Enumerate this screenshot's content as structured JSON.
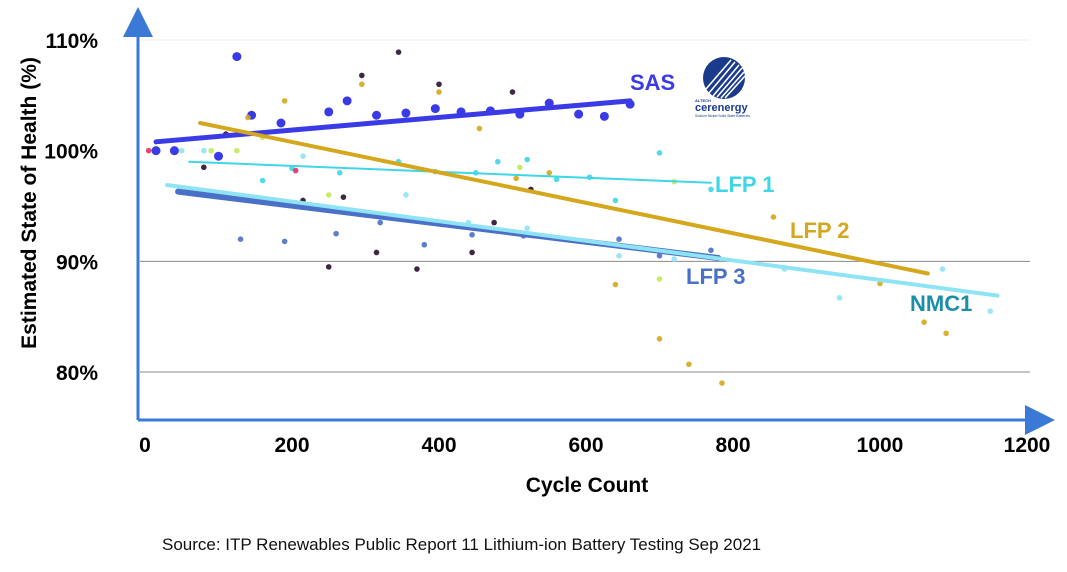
{
  "chart_data": {
    "type": "scatter",
    "title": "",
    "xlabel": "Cycle Count",
    "ylabel": "Estimated State of Health (%)",
    "xlim": [
      0,
      1200
    ],
    "ylim": [
      75,
      112
    ],
    "x_ticks": [
      0,
      200,
      400,
      600,
      800,
      1000,
      1200
    ],
    "y_ticks": [
      80,
      90,
      100,
      110
    ],
    "y_tick_labels": [
      "80%",
      "90%",
      "100%",
      "110%"
    ],
    "grid_lines_y": [
      80,
      90,
      110
    ],
    "series": [
      {
        "name": "SAS",
        "color": "#3a3ae6",
        "trend": [
          [
            15,
            100.8
          ],
          [
            660,
            104.5
          ]
        ],
        "points": [
          [
            15,
            100
          ],
          [
            40,
            100
          ],
          [
            100,
            99.5
          ],
          [
            125,
            108.5
          ],
          [
            145,
            103.2
          ],
          [
            185,
            102.5
          ],
          [
            250,
            103.5
          ],
          [
            275,
            104.5
          ],
          [
            315,
            103.2
          ],
          [
            355,
            103.4
          ],
          [
            395,
            103.8
          ],
          [
            430,
            103.5
          ],
          [
            470,
            103.6
          ],
          [
            510,
            103.3
          ],
          [
            550,
            104.3
          ],
          [
            590,
            103.3
          ],
          [
            625,
            103.1
          ],
          [
            660,
            104.2
          ]
        ]
      },
      {
        "name": "LFP 1",
        "color": "#3fd6e8",
        "trend": [
          [
            60,
            99.0
          ],
          [
            770,
            97.1
          ]
        ],
        "points": [
          [
            130,
            101.5
          ],
          [
            160,
            97.3
          ],
          [
            200,
            98.4
          ],
          [
            265,
            98
          ],
          [
            345,
            99
          ],
          [
            395,
            98.1
          ],
          [
            450,
            98
          ],
          [
            480,
            99
          ],
          [
            520,
            99.2
          ],
          [
            560,
            97.4
          ],
          [
            605,
            97.6
          ],
          [
            640,
            95.5
          ],
          [
            700,
            99.8
          ],
          [
            770,
            96.5
          ]
        ]
      },
      {
        "name": "LFP 2",
        "color": "#d4a71c",
        "trend": [
          [
            75,
            102.5
          ],
          [
            1065,
            88.9
          ]
        ],
        "points": [
          [
            140,
            103
          ],
          [
            190,
            104.5
          ],
          [
            295,
            106
          ],
          [
            400,
            105.3
          ],
          [
            455,
            102
          ],
          [
            505,
            97.5
          ],
          [
            550,
            98
          ],
          [
            640,
            87.9
          ],
          [
            700,
            83
          ],
          [
            740,
            80.7
          ],
          [
            785,
            79
          ],
          [
            855,
            94
          ],
          [
            1000,
            88
          ],
          [
            1060,
            84.5
          ],
          [
            1090,
            83.5
          ]
        ]
      },
      {
        "name": "LFP 3",
        "color": "#4a70c8",
        "trend": [
          [
            45,
            96.3
          ],
          [
            780,
            90.3
          ]
        ],
        "points": [
          [
            130,
            92
          ],
          [
            190,
            91.8
          ],
          [
            260,
            92.5
          ],
          [
            320,
            93.5
          ],
          [
            380,
            91.5
          ],
          [
            445,
            92.4
          ],
          [
            515,
            92.3
          ],
          [
            645,
            92
          ],
          [
            700,
            90.5
          ],
          [
            770,
            91
          ]
        ]
      },
      {
        "name": "NMC1",
        "color": "#8ee4f4",
        "trend": [
          [
            30,
            96.9
          ],
          [
            1160,
            86.9
          ]
        ],
        "points": [
          [
            50,
            100
          ],
          [
            80,
            100
          ],
          [
            215,
            99.5
          ],
          [
            355,
            96
          ],
          [
            440,
            93.5
          ],
          [
            520,
            93
          ],
          [
            645,
            90.5
          ],
          [
            720,
            90.2
          ],
          [
            870,
            89.3
          ],
          [
            945,
            86.7
          ],
          [
            1085,
            89.3
          ],
          [
            1150,
            85.5
          ]
        ]
      },
      {
        "name": "",
        "color": "#2a1030",
        "trend": null,
        "points": [
          [
            80,
            98.5
          ],
          [
            110,
            101.5
          ],
          [
            215,
            95.5
          ],
          [
            250,
            89.5
          ],
          [
            270,
            95.8
          ],
          [
            295,
            106.8
          ],
          [
            315,
            90.8
          ],
          [
            345,
            108.9
          ],
          [
            370,
            89.3
          ],
          [
            400,
            106
          ],
          [
            445,
            90.8
          ],
          [
            475,
            93.5
          ],
          [
            500,
            105.3
          ],
          [
            525,
            96.5
          ]
        ]
      },
      {
        "name": "",
        "color": "#c4e85c",
        "trend": null,
        "points": [
          [
            90,
            100
          ],
          [
            125,
            100
          ],
          [
            160,
            101.2
          ],
          [
            250,
            96
          ],
          [
            510,
            98.5
          ],
          [
            700,
            88.4
          ],
          [
            720,
            97.2
          ]
        ]
      },
      {
        "name": "",
        "color": "#e0306a",
        "trend": null,
        "points": [
          [
            5,
            100
          ],
          [
            205,
            98.2
          ]
        ]
      }
    ]
  },
  "logo": {
    "tagline": "ALTECH",
    "name": "cerenergy",
    "subtext": "Sodium Nickel Solid State Batteries"
  },
  "source": "Source: ITP Renewables Public Report 11 Lithium-ion Battery Testing Sep 2021"
}
